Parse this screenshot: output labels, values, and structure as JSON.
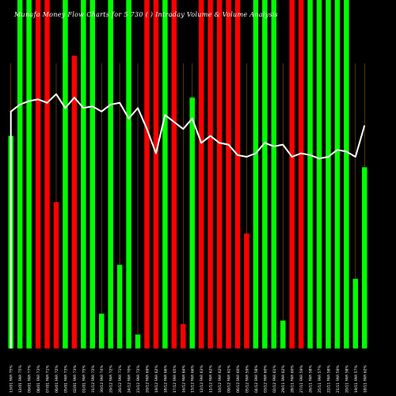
{
  "chart_data": {
    "type": "bar",
    "title": "Munafa Money Flow Charts for 5 730 ( ) Intraday Volume & Volume Analysis",
    "xlabel": "",
    "ylabel": "",
    "ylim": [
      0,
      100
    ],
    "grid": false,
    "legend": "none",
    "colors": {
      "up": "#00ff00",
      "down": "#ff0000",
      "line": "#ffffff",
      "background": "#000000",
      "gridline": "#8b5a1a"
    },
    "series": [
      {
        "type": "bar",
        "values": [
          61,
          100,
          100,
          100,
          100,
          42,
          100,
          84,
          100,
          100,
          10,
          100,
          24,
          100,
          4,
          100,
          100,
          100,
          100,
          7,
          72,
          100,
          100,
          100,
          100,
          100,
          33,
          100,
          100,
          100,
          8,
          100,
          100,
          100,
          100,
          100,
          100,
          100,
          20,
          52
        ],
        "directions": [
          "up",
          "up",
          "up",
          "down",
          "down",
          "down",
          "up",
          "down",
          "up",
          "up",
          "up",
          "up",
          "up",
          "up",
          "up",
          "down",
          "down",
          "up",
          "down",
          "down",
          "up",
          "down",
          "down",
          "down",
          "down",
          "down",
          "down",
          "up",
          "up",
          "up",
          "up",
          "down",
          "down",
          "up",
          "up",
          "up",
          "up",
          "up",
          "up",
          "up"
        ]
      },
      {
        "type": "line",
        "values": [
          68,
          70,
          71,
          71.5,
          70.5,
          73,
          69,
          72,
          69,
          69.5,
          68,
          70,
          70.5,
          66,
          69,
          63,
          56,
          67,
          65,
          63,
          66,
          59,
          61,
          59,
          58.5,
          55.5,
          55,
          56,
          59,
          58,
          58.5,
          55,
          56,
          55.5,
          54.5,
          55,
          57,
          56.5,
          55,
          64
        ]
      }
    ],
    "categories": [
      "13/01 FAR 75%",
      "12/01 FAR 75%",
      "09/01 FAR 77%",
      "08/01 FAR 73%",
      "07/01 FAR 71%",
      "06/01 FAR 72%",
      "05/01 FAR 73%",
      "02/01 FAR 73%",
      "01/01 FAR 75%",
      "31/12 FAR 72%",
      "30/12 FAR 74%",
      "29/12 FAR 72%",
      "26/12 FAR 71%",
      "24/12 FAR 70%",
      "23/12 FAR 72%",
      "20/12 FAR 69%",
      "19/12 FAR 62%",
      "18/12 FAR 66%",
      "17/12 FAR 65%",
      "16/12 FAR 64%",
      "13/12 FAR 66%",
      "12/12 FAR 63%",
      "11/12 FAR 62%",
      "10/12 FAR 62%",
      "09/12 FAR 61%",
      "06/12 FAR 60%",
      "05/12 FAR 59%",
      "04/12 FAR 58%",
      "03/12 FAR 60%",
      "02/12 FAR 61%",
      "29/11 FAR 62%",
      "28/11 FAR 60%",
      "27/11 FAR 59%",
      "26/11 FAR 58%",
      "25/11 FAR 57%",
      "22/11 FAR 58%",
      "21/11 FAR 59%",
      "20/11 FAR 58%",
      "19/11 FAR 57%",
      "18/11 FAR 62%"
    ]
  }
}
